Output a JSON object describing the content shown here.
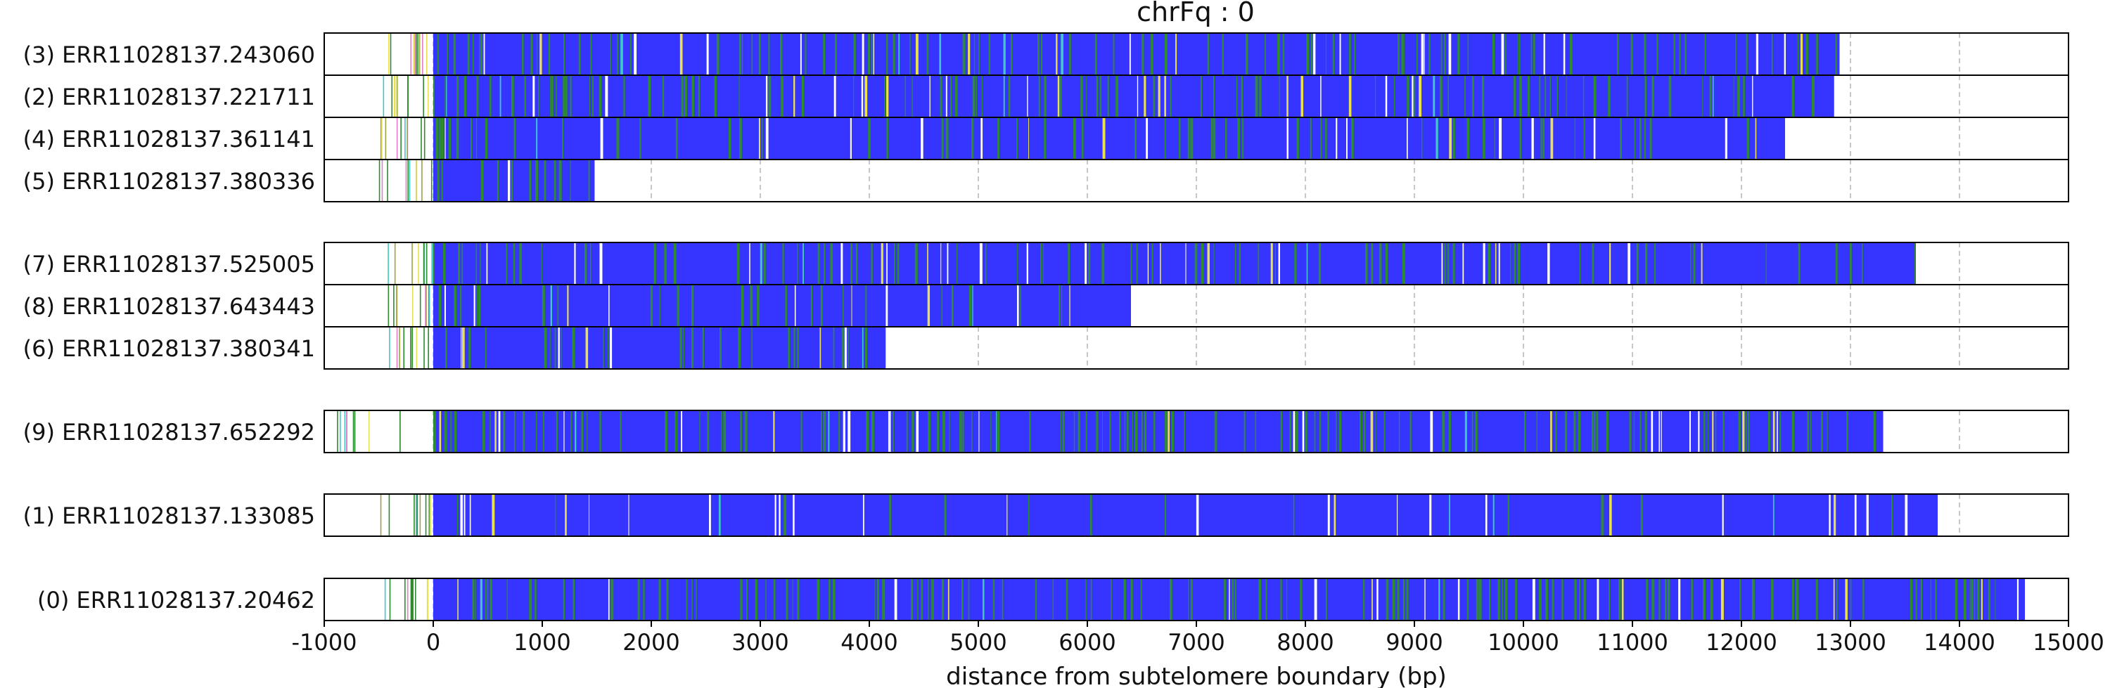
{
  "chart_data": {
    "type": "read-track-plot",
    "title": "chrFq : 0",
    "xlabel": "distance from subtelomere boundary (bp)",
    "ylabel": "",
    "xlim": [
      -1000,
      15000
    ],
    "x_ticks": [
      -1000,
      0,
      1000,
      2000,
      3000,
      4000,
      5000,
      6000,
      7000,
      8000,
      9000,
      10000,
      11000,
      12000,
      13000,
      14000,
      15000
    ],
    "grid": {
      "x": true,
      "style": "dashed",
      "color": "#c8c8c8"
    },
    "colors": {
      "main": "#3535ff",
      "green": "#2e8b2e",
      "yellow": "#e8e050",
      "cyan": "#40c8c8",
      "white": "#ffffff",
      "pink": "#e080c0",
      "olive": "#a0a040",
      "frame": "#000000"
    },
    "groups": [
      {
        "reads": [
          {
            "label": "(3) ERR11028137.243060",
            "start": -500,
            "end": 12900,
            "green_density": 0.5
          },
          {
            "label": "(2) ERR11028137.221711",
            "start": -500,
            "end": 12850,
            "green_density": 0.45
          },
          {
            "label": "(4) ERR11028137.361141",
            "start": -500,
            "end": 12400,
            "green_density": 0.35
          },
          {
            "label": "(5) ERR11028137.380336",
            "start": -500,
            "end": 1480,
            "green_density": 0.4
          }
        ]
      },
      {
        "reads": [
          {
            "label": "(7) ERR11028137.525005",
            "start": -500,
            "end": 13600,
            "green_density": 0.35
          },
          {
            "label": "(8) ERR11028137.643443",
            "start": -500,
            "end": 6400,
            "green_density": 0.35
          },
          {
            "label": "(6) ERR11028137.380341",
            "start": -500,
            "end": 4150,
            "green_density": 0.25
          }
        ]
      },
      {
        "reads": [
          {
            "label": "(9) ERR11028137.652292",
            "start": -900,
            "end": 13300,
            "green_density": 0.55
          }
        ]
      },
      {
        "reads": [
          {
            "label": "(1) ERR11028137.133085",
            "start": -500,
            "end": 13800,
            "green_density": 0.05
          }
        ]
      },
      {
        "reads": [
          {
            "label": "(0) ERR11028137.20462",
            "start": -500,
            "end": 14600,
            "green_density": 0.5
          }
        ]
      }
    ]
  }
}
